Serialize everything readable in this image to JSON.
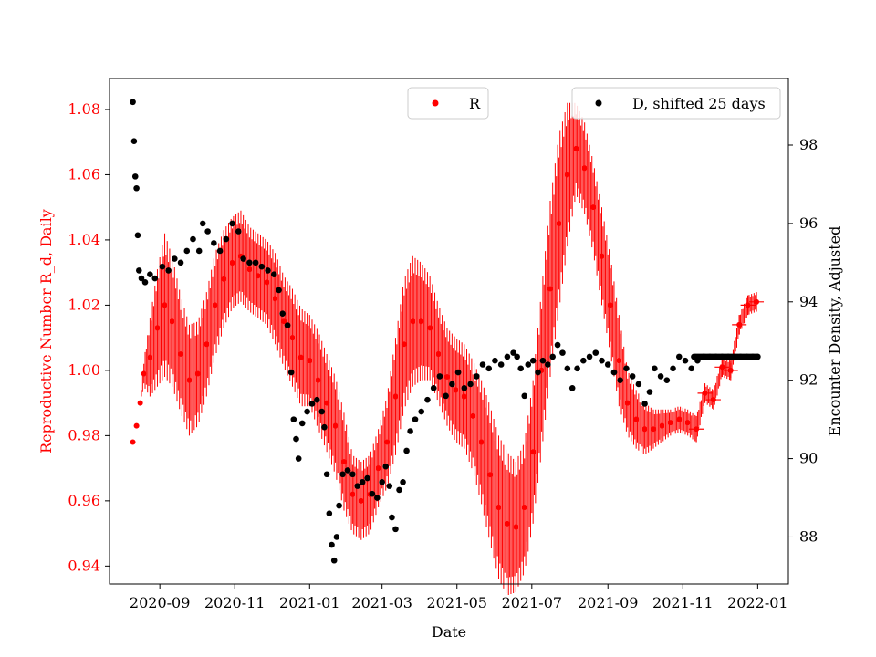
{
  "chart_data": {
    "type": "scatter",
    "xlabel": "Date",
    "ylabel_left": "Reproductive Number R_d, Daily",
    "ylabel_right": "Encounter Density, Adjusted",
    "x_ticks": [
      "2020-09",
      "2020-11",
      "2021-01",
      "2021-03",
      "2021-05",
      "2021-07",
      "2021-09",
      "2021-11",
      "2022-01"
    ],
    "y_left_ticks": [
      "0.94",
      "0.96",
      "0.98",
      "1.00",
      "1.02",
      "1.04",
      "1.06",
      "1.08"
    ],
    "y_right_ticks": [
      "88",
      "90",
      "92",
      "94",
      "96",
      "98"
    ],
    "x_range": [
      "2020-07-22",
      "2022-01-26"
    ],
    "y_left_range": [
      0.9345,
      1.0895
    ],
    "y_right_range": [
      86.8,
      99.7
    ],
    "grid": false,
    "legends": [
      {
        "position": "top-center",
        "entries": [
          {
            "label": "R",
            "color": "#ff0000"
          }
        ]
      },
      {
        "position": "top-right",
        "entries": [
          {
            "label": "D, shifted 25 days",
            "color": "#000000"
          }
        ]
      }
    ],
    "colors": {
      "R": "#ff0000",
      "D": "#000000",
      "left_axis": "#ff0000",
      "right_axis": "#000000"
    },
    "series": [
      {
        "name": "R",
        "axis": "left",
        "marker": "point with vertical error bar",
        "color": "#ff0000",
        "points": [
          [
            "2020-08-10",
            0.978,
            0
          ],
          [
            "2020-08-13",
            0.983,
            0
          ],
          [
            "2020-08-16",
            0.99,
            0
          ],
          [
            "2020-08-19",
            0.999,
            0.004
          ],
          [
            "2020-08-24",
            1.004,
            0.012
          ],
          [
            "2020-08-30",
            1.013,
            0.018
          ],
          [
            "2020-09-05",
            1.02,
            0.022
          ],
          [
            "2020-09-11",
            1.015,
            0.02
          ],
          [
            "2020-09-18",
            1.005,
            0.018
          ],
          [
            "2020-09-25",
            0.997,
            0.017
          ],
          [
            "2020-10-02",
            0.999,
            0.016
          ],
          [
            "2020-10-09",
            1.008,
            0.016
          ],
          [
            "2020-10-16",
            1.02,
            0.016
          ],
          [
            "2020-10-23",
            1.028,
            0.015
          ],
          [
            "2020-10-30",
            1.033,
            0.014
          ],
          [
            "2020-11-06",
            1.035,
            0.014
          ],
          [
            "2020-11-13",
            1.031,
            0.013
          ],
          [
            "2020-11-20",
            1.029,
            0.013
          ],
          [
            "2020-11-27",
            1.027,
            0.013
          ],
          [
            "2020-12-04",
            1.022,
            0.014
          ],
          [
            "2020-12-11",
            1.015,
            0.014
          ],
          [
            "2020-12-18",
            1.01,
            0.015
          ],
          [
            "2020-12-25",
            1.004,
            0.015
          ],
          [
            "2021-01-01",
            1.003,
            0.014
          ],
          [
            "2021-01-08",
            0.997,
            0.015
          ],
          [
            "2021-01-15",
            0.99,
            0.015
          ],
          [
            "2021-01-22",
            0.983,
            0.015
          ],
          [
            "2021-01-29",
            0.972,
            0.015
          ],
          [
            "2021-02-05",
            0.962,
            0.012
          ],
          [
            "2021-02-12",
            0.96,
            0.012
          ],
          [
            "2021-02-19",
            0.962,
            0.012
          ],
          [
            "2021-02-26",
            0.97,
            0.012
          ],
          [
            "2021-03-05",
            0.978,
            0.014
          ],
          [
            "2021-03-12",
            0.992,
            0.018
          ],
          [
            "2021-03-19",
            1.008,
            0.02
          ],
          [
            "2021-03-26",
            1.015,
            0.02
          ],
          [
            "2021-04-02",
            1.015,
            0.018
          ],
          [
            "2021-04-09",
            1.013,
            0.016
          ],
          [
            "2021-04-16",
            1.005,
            0.015
          ],
          [
            "2021-04-23",
            0.998,
            0.015
          ],
          [
            "2021-04-30",
            0.994,
            0.016
          ],
          [
            "2021-05-07",
            0.992,
            0.016
          ],
          [
            "2021-05-14",
            0.986,
            0.017
          ],
          [
            "2021-05-21",
            0.978,
            0.019
          ],
          [
            "2021-05-28",
            0.968,
            0.021
          ],
          [
            "2021-06-04",
            0.958,
            0.022
          ],
          [
            "2021-06-11",
            0.953,
            0.022
          ],
          [
            "2021-06-18",
            0.952,
            0.02
          ],
          [
            "2021-06-25",
            0.958,
            0.02
          ],
          [
            "2021-07-02",
            0.975,
            0.022
          ],
          [
            "2021-07-09",
            1.0,
            0.025
          ],
          [
            "2021-07-16",
            1.025,
            0.027
          ],
          [
            "2021-07-23",
            1.045,
            0.027
          ],
          [
            "2021-07-30",
            1.06,
            0.022
          ],
          [
            "2021-08-06",
            1.068,
            0.014
          ],
          [
            "2021-08-13",
            1.062,
            0.014
          ],
          [
            "2021-08-20",
            1.05,
            0.014
          ],
          [
            "2021-08-27",
            1.035,
            0.015
          ],
          [
            "2021-09-03",
            1.02,
            0.015
          ],
          [
            "2021-09-10",
            1.003,
            0.014
          ],
          [
            "2021-09-17",
            0.99,
            0.01
          ],
          [
            "2021-09-24",
            0.985,
            0.009
          ],
          [
            "2021-10-01",
            0.982,
            0.008
          ],
          [
            "2021-10-08",
            0.982,
            0.006
          ],
          [
            "2021-10-15",
            0.983,
            0.005
          ],
          [
            "2021-10-22",
            0.984,
            0.004
          ],
          [
            "2021-10-29",
            0.985,
            0.004
          ],
          [
            "2021-11-05",
            0.984,
            0.004
          ],
          [
            "2021-11-12",
            0.982,
            0.004
          ],
          [
            "2021-11-19",
            0.993,
            0.003
          ],
          [
            "2021-11-26",
            0.991,
            0.003
          ],
          [
            "2021-12-03",
            1.001,
            0.003
          ],
          [
            "2021-12-10",
            1.0,
            0.003
          ],
          [
            "2021-12-17",
            1.014,
            0.003
          ],
          [
            "2021-12-24",
            1.02,
            0.003
          ],
          [
            "2021-12-31",
            1.021,
            0.003
          ]
        ]
      },
      {
        "name": "D, shifted 25 days",
        "axis": "right",
        "marker": "dot",
        "color": "#000000",
        "points": [
          [
            "2020-08-10",
            99.1
          ],
          [
            "2020-08-11",
            98.1
          ],
          [
            "2020-08-12",
            97.2
          ],
          [
            "2020-08-13",
            96.9
          ],
          [
            "2020-08-14",
            95.7
          ],
          [
            "2020-08-15",
            94.8
          ],
          [
            "2020-08-17",
            94.6
          ],
          [
            "2020-08-20",
            94.5
          ],
          [
            "2020-08-24",
            94.7
          ],
          [
            "2020-08-28",
            94.6
          ],
          [
            "2020-09-03",
            94.9
          ],
          [
            "2020-09-08",
            94.8
          ],
          [
            "2020-09-13",
            95.1
          ],
          [
            "2020-09-18",
            95.0
          ],
          [
            "2020-09-23",
            95.3
          ],
          [
            "2020-09-28",
            95.6
          ],
          [
            "2020-10-03",
            95.3
          ],
          [
            "2020-10-06",
            96.0
          ],
          [
            "2020-10-10",
            95.8
          ],
          [
            "2020-10-15",
            95.5
          ],
          [
            "2020-10-20",
            95.3
          ],
          [
            "2020-10-25",
            95.6
          ],
          [
            "2020-10-30",
            96.0
          ],
          [
            "2020-11-04",
            95.8
          ],
          [
            "2020-11-08",
            95.1
          ],
          [
            "2020-11-13",
            95.0
          ],
          [
            "2020-11-18",
            95.0
          ],
          [
            "2020-11-23",
            94.9
          ],
          [
            "2020-11-28",
            94.8
          ],
          [
            "2020-12-03",
            94.7
          ],
          [
            "2020-12-07",
            94.3
          ],
          [
            "2020-12-10",
            93.7
          ],
          [
            "2020-12-14",
            93.4
          ],
          [
            "2020-12-17",
            92.2
          ],
          [
            "2020-12-19",
            91.0
          ],
          [
            "2020-12-21",
            90.5
          ],
          [
            "2020-12-23",
            90.0
          ],
          [
            "2020-12-26",
            90.9
          ],
          [
            "2020-12-30",
            91.2
          ],
          [
            "2021-01-03",
            91.4
          ],
          [
            "2021-01-07",
            91.5
          ],
          [
            "2021-01-11",
            91.2
          ],
          [
            "2021-01-13",
            90.8
          ],
          [
            "2021-01-15",
            89.6
          ],
          [
            "2021-01-17",
            88.6
          ],
          [
            "2021-01-19",
            87.8
          ],
          [
            "2021-01-21",
            87.4
          ],
          [
            "2021-01-23",
            88.0
          ],
          [
            "2021-01-25",
            88.8
          ],
          [
            "2021-01-28",
            89.6
          ],
          [
            "2021-02-01",
            89.7
          ],
          [
            "2021-02-05",
            89.6
          ],
          [
            "2021-02-09",
            89.3
          ],
          [
            "2021-02-13",
            89.4
          ],
          [
            "2021-02-17",
            89.5
          ],
          [
            "2021-02-21",
            89.1
          ],
          [
            "2021-02-25",
            89.0
          ],
          [
            "2021-03-01",
            89.4
          ],
          [
            "2021-03-04",
            89.8
          ],
          [
            "2021-03-07",
            89.3
          ],
          [
            "2021-03-09",
            88.5
          ],
          [
            "2021-03-12",
            88.2
          ],
          [
            "2021-03-15",
            89.2
          ],
          [
            "2021-03-18",
            89.4
          ],
          [
            "2021-03-21",
            90.2
          ],
          [
            "2021-03-24",
            90.7
          ],
          [
            "2021-03-28",
            91.0
          ],
          [
            "2021-04-02",
            91.2
          ],
          [
            "2021-04-07",
            91.5
          ],
          [
            "2021-04-12",
            91.8
          ],
          [
            "2021-04-17",
            92.1
          ],
          [
            "2021-04-22",
            91.6
          ],
          [
            "2021-04-27",
            91.9
          ],
          [
            "2021-05-02",
            92.2
          ],
          [
            "2021-05-07",
            91.8
          ],
          [
            "2021-05-12",
            91.9
          ],
          [
            "2021-05-17",
            92.1
          ],
          [
            "2021-05-22",
            92.4
          ],
          [
            "2021-05-27",
            92.3
          ],
          [
            "2021-06-01",
            92.5
          ],
          [
            "2021-06-06",
            92.4
          ],
          [
            "2021-06-11",
            92.6
          ],
          [
            "2021-06-16",
            92.7
          ],
          [
            "2021-06-19",
            92.6
          ],
          [
            "2021-06-22",
            92.3
          ],
          [
            "2021-06-25",
            91.6
          ],
          [
            "2021-06-28",
            92.4
          ],
          [
            "2021-07-02",
            92.5
          ],
          [
            "2021-07-06",
            92.2
          ],
          [
            "2021-07-10",
            92.5
          ],
          [
            "2021-07-14",
            92.4
          ],
          [
            "2021-07-18",
            92.6
          ],
          [
            "2021-07-22",
            92.9
          ],
          [
            "2021-07-26",
            92.7
          ],
          [
            "2021-07-30",
            92.3
          ],
          [
            "2021-08-03",
            91.8
          ],
          [
            "2021-08-07",
            92.3
          ],
          [
            "2021-08-12",
            92.5
          ],
          [
            "2021-08-17",
            92.6
          ],
          [
            "2021-08-22",
            92.7
          ],
          [
            "2021-08-27",
            92.5
          ],
          [
            "2021-09-01",
            92.4
          ],
          [
            "2021-09-06",
            92.2
          ],
          [
            "2021-09-11",
            92.0
          ],
          [
            "2021-09-16",
            92.3
          ],
          [
            "2021-09-21",
            92.1
          ],
          [
            "2021-09-26",
            91.9
          ],
          [
            "2021-10-01",
            91.4
          ],
          [
            "2021-10-05",
            91.7
          ],
          [
            "2021-10-09",
            92.3
          ],
          [
            "2021-10-14",
            92.1
          ],
          [
            "2021-10-19",
            92.0
          ],
          [
            "2021-10-24",
            92.3
          ],
          [
            "2021-10-29",
            92.6
          ],
          [
            "2021-11-03",
            92.5
          ],
          [
            "2021-11-08",
            92.3
          ],
          [
            "2021-11-13",
            92.5
          ],
          [
            "2021-11-18",
            92.6
          ],
          [
            "2021-11-23",
            92.6
          ],
          [
            "2021-11-28",
            92.6
          ],
          [
            "2021-12-03",
            92.6
          ],
          [
            "2021-12-08",
            92.6
          ],
          [
            "2021-12-13",
            92.6
          ],
          [
            "2021-12-18",
            92.6
          ],
          [
            "2021-12-23",
            92.6
          ],
          [
            "2021-12-28",
            92.6
          ],
          [
            "2022-01-01",
            92.6
          ]
        ]
      }
    ]
  }
}
